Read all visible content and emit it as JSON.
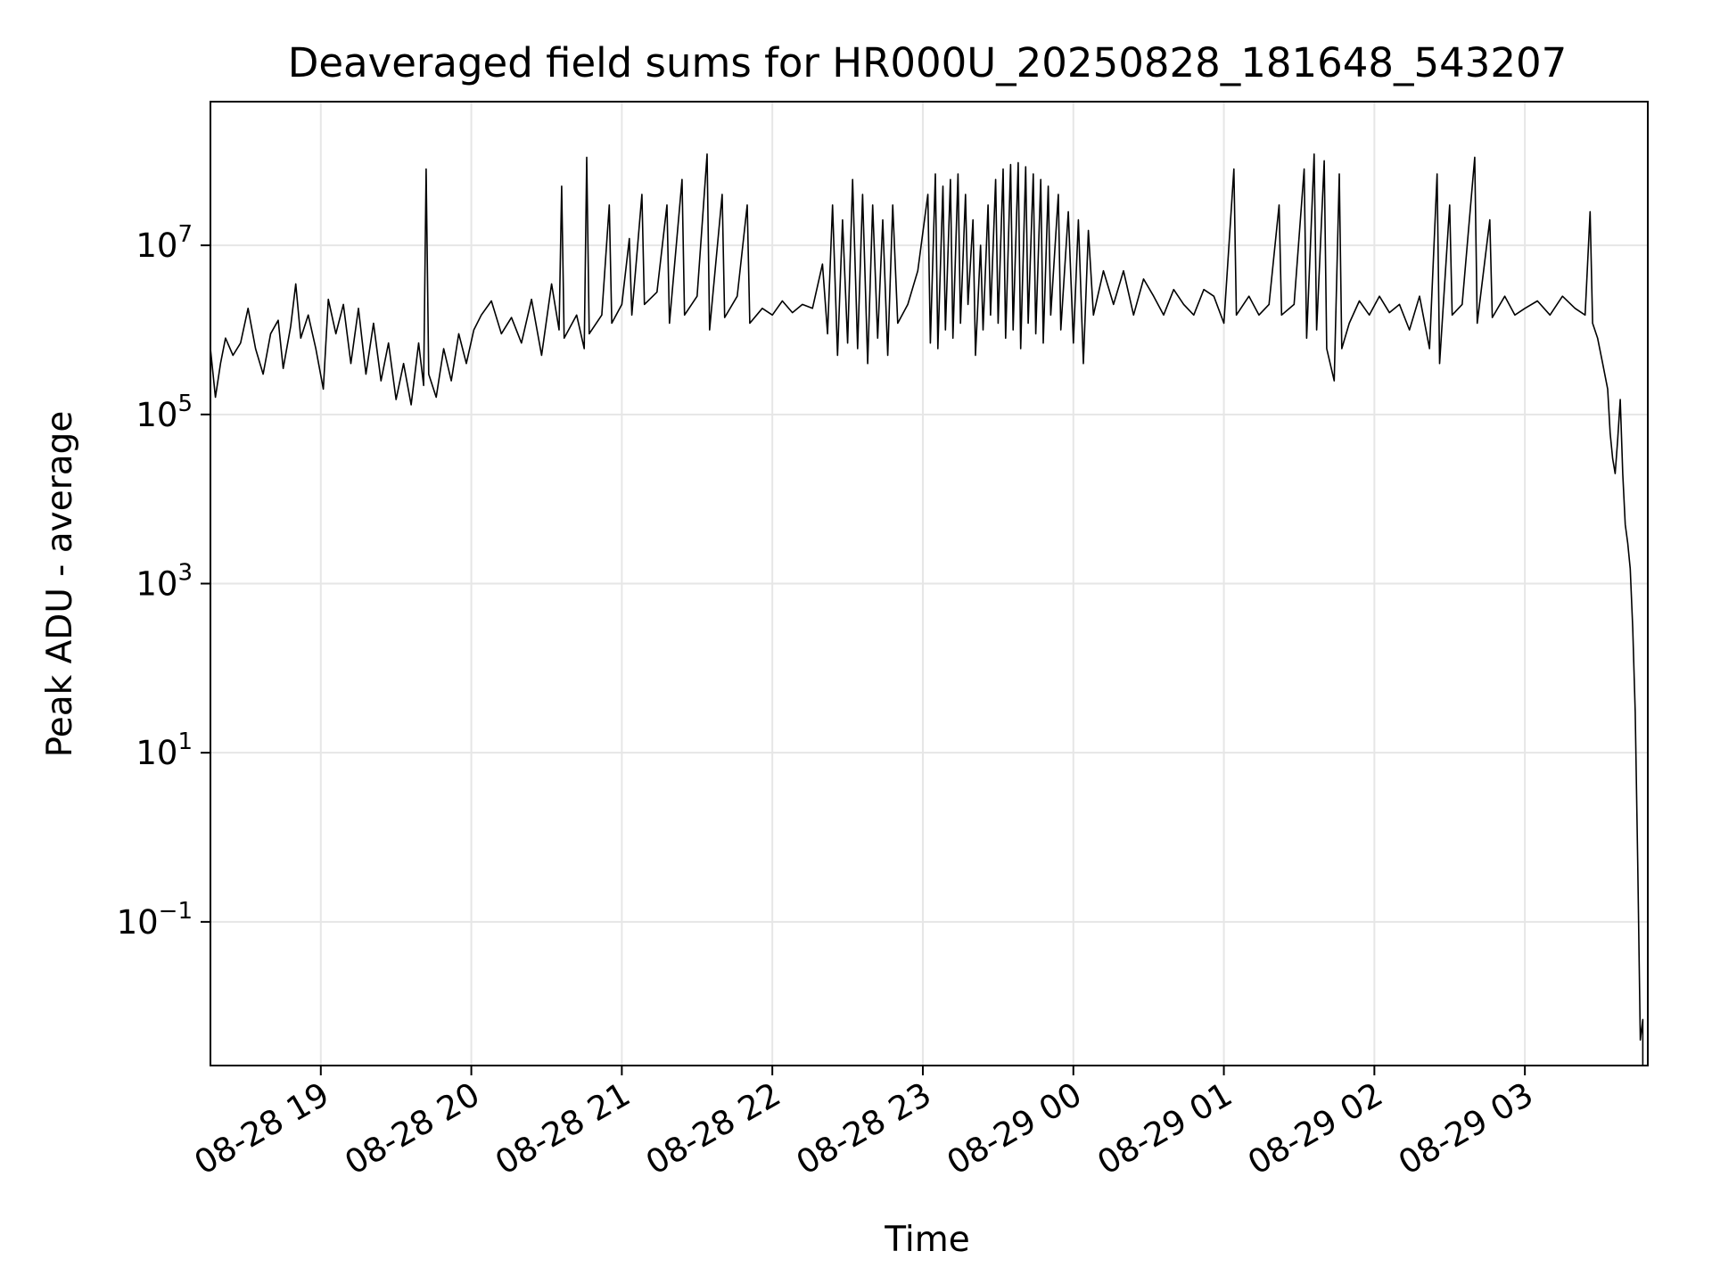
{
  "chart_data": {
    "type": "line",
    "title": "Deaveraged field sums for HR000U_20250828_181648_543207",
    "xlabel": "Time",
    "ylabel": "Peak ADU - average",
    "yscale": "log",
    "grid": true,
    "xlim": [
      "2025-08-28 18:16",
      "2025-08-29 03:49"
    ],
    "ylim": [
      0.002,
      500000000.0
    ],
    "x_ticks": [
      {
        "label": "08-28 19",
        "time": "2025-08-28 19:00"
      },
      {
        "label": "08-28 20",
        "time": "2025-08-28 20:00"
      },
      {
        "label": "08-28 21",
        "time": "2025-08-28 21:00"
      },
      {
        "label": "08-28 22",
        "time": "2025-08-28 22:00"
      },
      {
        "label": "08-28 23",
        "time": "2025-08-28 23:00"
      },
      {
        "label": "08-29 00",
        "time": "2025-08-29 00:00"
      },
      {
        "label": "08-29 01",
        "time": "2025-08-29 01:00"
      },
      {
        "label": "08-29 02",
        "time": "2025-08-29 02:00"
      },
      {
        "label": "08-29 03",
        "time": "2025-08-29 03:00"
      }
    ],
    "y_ticks": [
      {
        "base": "10",
        "exp": "7",
        "value": 10000000
      },
      {
        "base": "10",
        "exp": "5",
        "value": 100000
      },
      {
        "base": "10",
        "exp": "3",
        "value": 1000
      },
      {
        "base": "10",
        "exp": "1",
        "value": 10
      },
      {
        "base": "10",
        "exp": "−1",
        "value": 0.1
      }
    ],
    "series": [
      {
        "color": "#000000",
        "points": [
          [
            "2025-08-28 18:16",
            600000
          ],
          [
            "2025-08-28 18:18",
            160000
          ],
          [
            "2025-08-28 18:20",
            400000
          ],
          [
            "2025-08-28 18:22",
            800000
          ],
          [
            "2025-08-28 18:25",
            500000
          ],
          [
            "2025-08-28 18:28",
            700000
          ],
          [
            "2025-08-28 18:31",
            1800000
          ],
          [
            "2025-08-28 18:34",
            600000
          ],
          [
            "2025-08-28 18:37",
            300000
          ],
          [
            "2025-08-28 18:40",
            900000
          ],
          [
            "2025-08-28 18:43",
            1300000
          ],
          [
            "2025-08-28 18:45",
            350000
          ],
          [
            "2025-08-28 18:48",
            1100000
          ],
          [
            "2025-08-28 18:50",
            3500000
          ],
          [
            "2025-08-28 18:52",
            800000
          ],
          [
            "2025-08-28 18:55",
            1500000
          ],
          [
            "2025-08-28 18:58",
            600000
          ],
          [
            "2025-08-28 19:01",
            200000
          ],
          [
            "2025-08-28 19:03",
            2300000
          ],
          [
            "2025-08-28 19:06",
            900000
          ],
          [
            "2025-08-28 19:09",
            2000000
          ],
          [
            "2025-08-28 19:12",
            400000
          ],
          [
            "2025-08-28 19:15",
            1800000
          ],
          [
            "2025-08-28 19:18",
            300000
          ],
          [
            "2025-08-28 19:21",
            1200000
          ],
          [
            "2025-08-28 19:24",
            250000
          ],
          [
            "2025-08-28 19:27",
            700000
          ],
          [
            "2025-08-28 19:30",
            150000
          ],
          [
            "2025-08-28 19:33",
            400000
          ],
          [
            "2025-08-28 19:36",
            130000
          ],
          [
            "2025-08-28 19:39",
            700000
          ],
          [
            "2025-08-28 19:41",
            220000
          ],
          [
            "2025-08-28 19:42",
            80000000
          ],
          [
            "2025-08-28 19:43",
            300000
          ],
          [
            "2025-08-28 19:46",
            160000
          ],
          [
            "2025-08-28 19:49",
            600000
          ],
          [
            "2025-08-28 19:52",
            250000
          ],
          [
            "2025-08-28 19:55",
            900000
          ],
          [
            "2025-08-28 19:58",
            400000
          ],
          [
            "2025-08-28 20:01",
            1000000
          ],
          [
            "2025-08-28 20:04",
            1500000
          ],
          [
            "2025-08-28 20:08",
            2200000
          ],
          [
            "2025-08-28 20:12",
            900000
          ],
          [
            "2025-08-28 20:16",
            1400000
          ],
          [
            "2025-08-28 20:20",
            700000
          ],
          [
            "2025-08-28 20:24",
            2300000
          ],
          [
            "2025-08-28 20:28",
            500000
          ],
          [
            "2025-08-28 20:32",
            3500000
          ],
          [
            "2025-08-28 20:35",
            1000000
          ],
          [
            "2025-08-28 20:36",
            50000000
          ],
          [
            "2025-08-28 20:37",
            800000
          ],
          [
            "2025-08-28 20:42",
            1500000
          ],
          [
            "2025-08-28 20:45",
            600000
          ],
          [
            "2025-08-28 20:46",
            110000000
          ],
          [
            "2025-08-28 20:47",
            900000
          ],
          [
            "2025-08-28 20:52",
            1500000
          ],
          [
            "2025-08-28 20:55",
            30000000
          ],
          [
            "2025-08-28 20:56",
            1200000
          ],
          [
            "2025-08-28 21:00",
            2000000
          ],
          [
            "2025-08-28 21:03",
            12000000
          ],
          [
            "2025-08-28 21:04",
            1500000
          ],
          [
            "2025-08-28 21:08",
            40000000
          ],
          [
            "2025-08-28 21:09",
            2000000
          ],
          [
            "2025-08-28 21:14",
            2800000
          ],
          [
            "2025-08-28 21:18",
            30000000
          ],
          [
            "2025-08-28 21:19",
            1200000
          ],
          [
            "2025-08-28 21:24",
            60000000
          ],
          [
            "2025-08-28 21:25",
            1500000
          ],
          [
            "2025-08-28 21:30",
            2500000
          ],
          [
            "2025-08-28 21:34",
            120000000
          ],
          [
            "2025-08-28 21:35",
            1000000
          ],
          [
            "2025-08-28 21:40",
            40000000
          ],
          [
            "2025-08-28 21:41",
            1400000
          ],
          [
            "2025-08-28 21:46",
            2500000
          ],
          [
            "2025-08-28 21:50",
            30000000
          ],
          [
            "2025-08-28 21:51",
            1200000
          ],
          [
            "2025-08-28 21:56",
            1800000
          ],
          [
            "2025-08-28 22:00",
            1500000
          ],
          [
            "2025-08-28 22:04",
            2200000
          ],
          [
            "2025-08-28 22:08",
            1600000
          ],
          [
            "2025-08-28 22:12",
            2000000
          ],
          [
            "2025-08-28 22:16",
            1800000
          ],
          [
            "2025-08-28 22:20",
            6000000
          ],
          [
            "2025-08-28 22:22",
            900000
          ],
          [
            "2025-08-28 22:24",
            30000000
          ],
          [
            "2025-08-28 22:26",
            500000
          ],
          [
            "2025-08-28 22:28",
            20000000
          ],
          [
            "2025-08-28 22:30",
            700000
          ],
          [
            "2025-08-28 22:32",
            60000000
          ],
          [
            "2025-08-28 22:34",
            600000
          ],
          [
            "2025-08-28 22:36",
            40000000
          ],
          [
            "2025-08-28 22:38",
            400000
          ],
          [
            "2025-08-28 22:40",
            30000000
          ],
          [
            "2025-08-28 22:42",
            800000
          ],
          [
            "2025-08-28 22:44",
            20000000
          ],
          [
            "2025-08-28 22:46",
            500000
          ],
          [
            "2025-08-28 22:48",
            30000000
          ],
          [
            "2025-08-28 22:50",
            1200000
          ],
          [
            "2025-08-28 22:54",
            2000000
          ],
          [
            "2025-08-28 22:58",
            5000000
          ],
          [
            "2025-08-28 23:02",
            40000000
          ],
          [
            "2025-08-28 23:03",
            700000
          ],
          [
            "2025-08-28 23:05",
            70000000
          ],
          [
            "2025-08-28 23:06",
            600000
          ],
          [
            "2025-08-28 23:08",
            50000000
          ],
          [
            "2025-08-28 23:09",
            1000000
          ],
          [
            "2025-08-28 23:11",
            60000000
          ],
          [
            "2025-08-28 23:12",
            800000
          ],
          [
            "2025-08-28 23:14",
            70000000
          ],
          [
            "2025-08-28 23:15",
            1200000
          ],
          [
            "2025-08-28 23:17",
            40000000
          ],
          [
            "2025-08-28 23:18",
            2000000
          ],
          [
            "2025-08-28 23:20",
            20000000
          ],
          [
            "2025-08-28 23:21",
            500000
          ],
          [
            "2025-08-28 23:23",
            10000000
          ],
          [
            "2025-08-28 23:24",
            1000000
          ],
          [
            "2025-08-28 23:26",
            30000000
          ],
          [
            "2025-08-28 23:27",
            1500000
          ],
          [
            "2025-08-28 23:29",
            60000000
          ],
          [
            "2025-08-28 23:30",
            1200000
          ],
          [
            "2025-08-28 23:32",
            80000000
          ],
          [
            "2025-08-28 23:33",
            800000
          ],
          [
            "2025-08-28 23:35",
            90000000
          ],
          [
            "2025-08-28 23:36",
            1000000
          ],
          [
            "2025-08-28 23:38",
            95000000
          ],
          [
            "2025-08-28 23:39",
            600000
          ],
          [
            "2025-08-28 23:41",
            85000000
          ],
          [
            "2025-08-28 23:42",
            1200000
          ],
          [
            "2025-08-28 23:44",
            70000000
          ],
          [
            "2025-08-28 23:45",
            900000
          ],
          [
            "2025-08-28 23:47",
            60000000
          ],
          [
            "2025-08-28 23:48",
            700000
          ],
          [
            "2025-08-28 23:50",
            50000000
          ],
          [
            "2025-08-28 23:51",
            1500000
          ],
          [
            "2025-08-28 23:54",
            40000000
          ],
          [
            "2025-08-28 23:55",
            1000000
          ],
          [
            "2025-08-28 23:58",
            25000000
          ],
          [
            "2025-08-29 00:00",
            700000
          ],
          [
            "2025-08-29 00:02",
            20000000
          ],
          [
            "2025-08-29 00:04",
            400000
          ],
          [
            "2025-08-29 00:06",
            15000000
          ],
          [
            "2025-08-29 00:08",
            1500000
          ],
          [
            "2025-08-29 00:12",
            5000000
          ],
          [
            "2025-08-29 00:16",
            2000000
          ],
          [
            "2025-08-29 00:20",
            5000000
          ],
          [
            "2025-08-29 00:24",
            1500000
          ],
          [
            "2025-08-29 00:28",
            4000000
          ],
          [
            "2025-08-29 00:32",
            2500000
          ],
          [
            "2025-08-29 00:36",
            1500000
          ],
          [
            "2025-08-29 00:40",
            3000000
          ],
          [
            "2025-08-29 00:44",
            2000000
          ],
          [
            "2025-08-29 00:48",
            1500000
          ],
          [
            "2025-08-29 00:52",
            3000000
          ],
          [
            "2025-08-29 00:56",
            2500000
          ],
          [
            "2025-08-29 01:00",
            1200000
          ],
          [
            "2025-08-29 01:04",
            80000000
          ],
          [
            "2025-08-29 01:05",
            1500000
          ],
          [
            "2025-08-29 01:10",
            2500000
          ],
          [
            "2025-08-29 01:14",
            1500000
          ],
          [
            "2025-08-29 01:18",
            2000000
          ],
          [
            "2025-08-29 01:22",
            30000000
          ],
          [
            "2025-08-29 01:23",
            1500000
          ],
          [
            "2025-08-29 01:28",
            2000000
          ],
          [
            "2025-08-29 01:32",
            80000000
          ],
          [
            "2025-08-29 01:33",
            800000
          ],
          [
            "2025-08-29 01:36",
            120000000
          ],
          [
            "2025-08-29 01:37",
            1000000
          ],
          [
            "2025-08-29 01:40",
            100000000
          ],
          [
            "2025-08-29 01:41",
            600000
          ],
          [
            "2025-08-29 01:44",
            250000
          ],
          [
            "2025-08-29 01:46",
            70000000
          ],
          [
            "2025-08-29 01:47",
            600000
          ],
          [
            "2025-08-29 01:50",
            1200000
          ],
          [
            "2025-08-29 01:54",
            2200000
          ],
          [
            "2025-08-29 01:58",
            1500000
          ],
          [
            "2025-08-29 02:02",
            2500000
          ],
          [
            "2025-08-29 02:06",
            1600000
          ],
          [
            "2025-08-29 02:10",
            2000000
          ],
          [
            "2025-08-29 02:14",
            1000000
          ],
          [
            "2025-08-29 02:18",
            2500000
          ],
          [
            "2025-08-29 02:22",
            600000
          ],
          [
            "2025-08-29 02:25",
            70000000
          ],
          [
            "2025-08-29 02:26",
            400000
          ],
          [
            "2025-08-29 02:30",
            30000000
          ],
          [
            "2025-08-29 02:31",
            1500000
          ],
          [
            "2025-08-29 02:35",
            2000000
          ],
          [
            "2025-08-29 02:40",
            110000000
          ],
          [
            "2025-08-29 02:41",
            1200000
          ],
          [
            "2025-08-29 02:46",
            20000000
          ],
          [
            "2025-08-29 02:47",
            1400000
          ],
          [
            "2025-08-29 02:52",
            2500000
          ],
          [
            "2025-08-29 02:56",
            1500000
          ],
          [
            "2025-08-29 03:00",
            1800000
          ],
          [
            "2025-08-29 03:05",
            2200000
          ],
          [
            "2025-08-29 03:10",
            1500000
          ],
          [
            "2025-08-29 03:15",
            2500000
          ],
          [
            "2025-08-29 03:20",
            1800000
          ],
          [
            "2025-08-29 03:24",
            1500000
          ],
          [
            "2025-08-29 03:26",
            25000000
          ],
          [
            "2025-08-29 03:27",
            1200000
          ],
          [
            "2025-08-29 03:29",
            800000
          ],
          [
            "2025-08-29 03:31",
            400000
          ],
          [
            "2025-08-29 03:33",
            200000
          ],
          [
            "2025-08-29 03:34",
            60000
          ],
          [
            "2025-08-29 03:35",
            30000
          ],
          [
            "2025-08-29 03:36",
            20000
          ],
          [
            "2025-08-29 03:37",
            50000
          ],
          [
            "2025-08-29 03:38",
            150000
          ],
          [
            "2025-08-29 03:39",
            20000
          ],
          [
            "2025-08-29 03:40",
            5000
          ],
          [
            "2025-08-29 03:41",
            3000
          ],
          [
            "2025-08-29 03:42",
            1500
          ],
          [
            "2025-08-29 03:43",
            300
          ],
          [
            "2025-08-29 03:44",
            30
          ],
          [
            "2025-08-29 03:45",
            0.5
          ],
          [
            "2025-08-29 03:46",
            0.004
          ],
          [
            "2025-08-29 03:47",
            0.007
          ],
          [
            "2025-08-29 03:47",
            0.002
          ]
        ]
      }
    ]
  }
}
